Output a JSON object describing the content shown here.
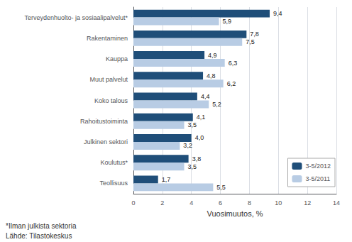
{
  "chart_data": {
    "type": "bar",
    "orientation": "horizontal",
    "categories": [
      "Terveydenhuolto- ja sosiaalipalvelut*",
      "Rakentaminen",
      "Kauppa",
      "Muut palvelut",
      "Koko talous",
      "Rahoitustoiminta",
      "Julkinen sektori",
      "Koulutus*",
      "Teollisuus"
    ],
    "series": [
      {
        "name": "3-5/2012",
        "color": "#1F4E79",
        "values": [
          9.4,
          7.8,
          4.9,
          4.8,
          4.4,
          4.1,
          4.0,
          3.8,
          1.7
        ],
        "value_labels": [
          "9,4",
          "7,8",
          "4,9",
          "4,8",
          "4,4",
          "4,1",
          "4,0",
          "3,8",
          "1,7"
        ]
      },
      {
        "name": "3-5/2011",
        "color": "#B8CCE4",
        "values": [
          5.9,
          7.5,
          6.3,
          6.2,
          5.2,
          3.5,
          3.2,
          3.5,
          5.5
        ],
        "value_labels": [
          "5,9",
          "7,5",
          "6,3",
          "6,2",
          "5,2",
          "3,5",
          "3,2",
          "3,5",
          "5,5"
        ]
      }
    ],
    "xlabel": "Vuosimuutos, %",
    "xlim": [
      0,
      14
    ],
    "xticks": [
      0,
      2,
      4,
      6,
      8,
      10,
      12,
      14
    ],
    "grid": true,
    "legend": "lower right",
    "data_labels": true,
    "annotations": [
      "*Ilman julkista sektoria",
      "Lähde: Tilastokeskus"
    ]
  }
}
